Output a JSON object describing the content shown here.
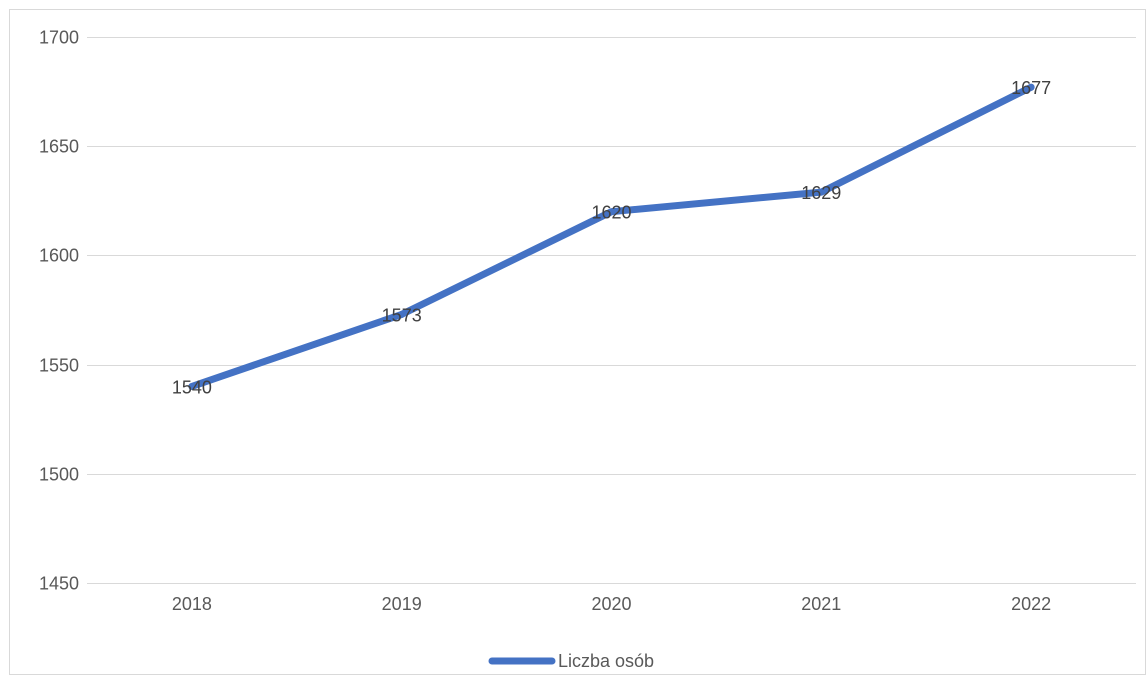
{
  "chart_data": {
    "type": "line",
    "title": "",
    "xlabel": "",
    "ylabel": "",
    "categories": [
      "2018",
      "2019",
      "2020",
      "2021",
      "2022"
    ],
    "series": [
      {
        "name": "Liczba osób",
        "values": [
          1540,
          1573,
          1620,
          1629,
          1677
        ],
        "data_labels": [
          "1540",
          "1573",
          "1620",
          "1629",
          "1677"
        ],
        "color": "#4472c4"
      }
    ],
    "ylim": [
      1450,
      1700
    ],
    "yticks": [
      1450,
      1500,
      1550,
      1600,
      1650,
      1700
    ],
    "ytick_labels": [
      "1450",
      "1500",
      "1550",
      "1600",
      "1650",
      "1700"
    ],
    "grid": true,
    "legend": "bottom"
  }
}
